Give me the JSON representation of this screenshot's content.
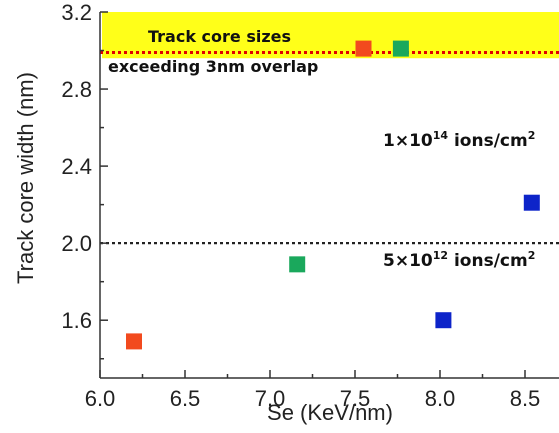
{
  "chart_data": {
    "type": "scatter",
    "xlabel": "Se (KeV/nm)",
    "ylabel": "Track core width (nm)",
    "xlim": [
      6.0,
      8.7
    ],
    "ylim": [
      1.3,
      3.2
    ],
    "xticks": [
      "6.0",
      "6.5",
      "7.0",
      "7.5",
      "8.0",
      "8.5"
    ],
    "yticks": [
      "1.6",
      "2.0",
      "2.4",
      "2.8",
      "3.2"
    ],
    "points": [
      {
        "x": 6.2,
        "y": 1.49,
        "color": "#f24a1e"
      },
      {
        "x": 7.55,
        "y": 3.01,
        "color": "#f24a1e"
      },
      {
        "x": 7.16,
        "y": 1.89,
        "color": "#1aa85c"
      },
      {
        "x": 7.77,
        "y": 3.01,
        "color": "#1aa85c"
      },
      {
        "x": 8.02,
        "y": 1.6,
        "color": "#0d24c9"
      },
      {
        "x": 8.54,
        "y": 2.21,
        "color": "#0d24c9"
      }
    ],
    "highlight_band": {
      "y_from": 2.96,
      "y_to": 3.2,
      "color": "#ffff19"
    },
    "reference_lines": [
      {
        "y": 2.99,
        "color": "#e00000",
        "style": "dotted"
      },
      {
        "y": 2.0,
        "color": "#222222",
        "style": "dotted"
      }
    ],
    "annotations": {
      "band_title": "Track core sizes",
      "band_subtitle": "exceeding 3nm overlap",
      "upper_fluence": {
        "base": "1×10",
        "exp": "14",
        "unit": " ions/cm",
        "unit_exp": "2"
      },
      "lower_fluence": {
        "base": "5×10",
        "exp": "12",
        "unit": " ions/cm",
        "unit_exp": "2"
      }
    },
    "grid": false,
    "legend": "none"
  }
}
